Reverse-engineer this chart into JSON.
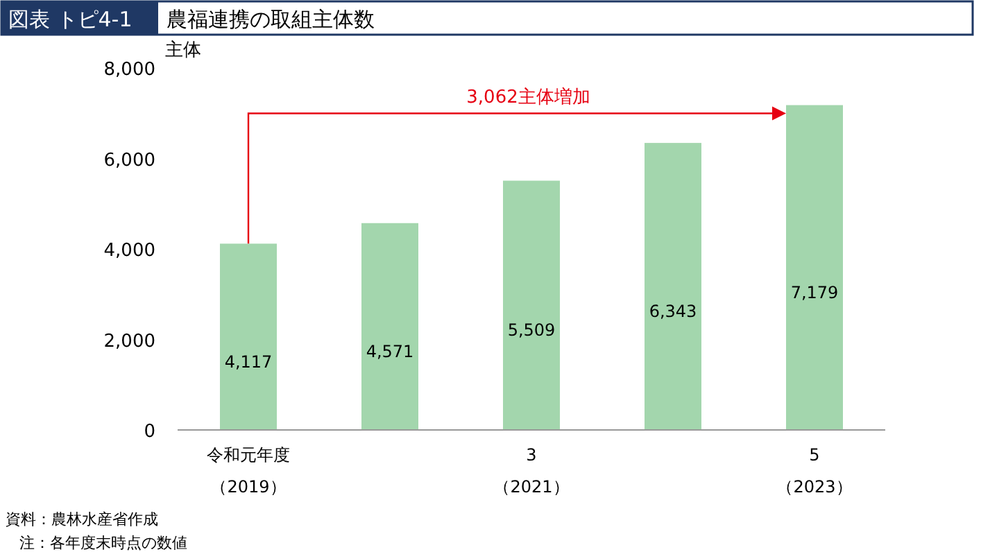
{
  "chart_data": {
    "type": "bar",
    "subtitle": "図表 トピ4-1",
    "title": "農福連携の取組主体数",
    "ylabel": "主体",
    "categories": [
      "令和元年度（2019）",
      null,
      "3（2021）",
      null,
      "5（2023）"
    ],
    "values": [
      4117,
      4571,
      5509,
      6343,
      7179
    ],
    "color": "#a3d6ad",
    "ylim": [
      0,
      8000
    ],
    "yticks": [
      {
        "value": 0,
        "label": "0"
      },
      {
        "value": 2000,
        "label": "2,000"
      },
      {
        "value": 4000,
        "label": "4,000"
      },
      {
        "value": 6000,
        "label": "6,000"
      },
      {
        "value": 8000,
        "label": "8,000"
      }
    ],
    "value_labels": [
      "4,117",
      "4,571",
      "5,509",
      "6,343",
      "7,179"
    ],
    "grid": false,
    "annotations": [
      "3,062主体増加",
      "資料：農林水産省作成",
      "注：各年度末時点の数値"
    ]
  }
}
